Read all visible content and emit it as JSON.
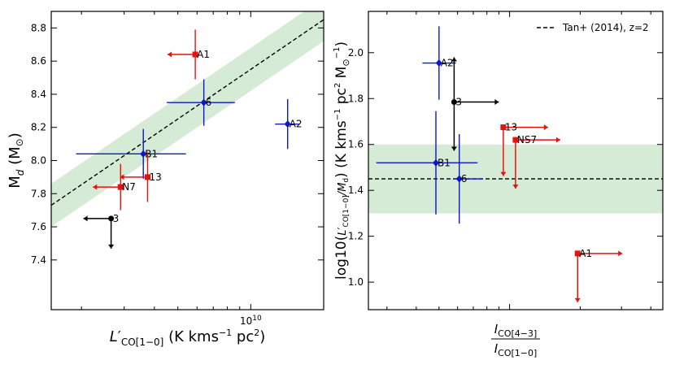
{
  "chart_data": [
    {
      "type": "scatter",
      "xscale": "log",
      "xlim": [
        1500000000.0,
        20000000000.0
      ],
      "ylim": [
        7.1,
        8.9
      ],
      "xticks": [
        {
          "value": 10000000000.0,
          "label": "10^10"
        }
      ],
      "yticks": [
        7.4,
        7.6,
        7.8,
        8.0,
        8.2,
        8.4,
        8.6,
        8.8
      ],
      "xlabel_text": "L′CO[1−0] (K kms⁻¹ pc²)",
      "ylabel_text": "Md (M⊙)",
      "relation": {
        "name": "Tan+ (2014), z=2",
        "style": "dashed",
        "x": [
          1500000000.0,
          20000000000.0
        ],
        "y": [
          7.73,
          8.85
        ],
        "band_halfwidth": 0.13,
        "band_color": "#cfe8cf"
      },
      "points": [
        {
          "label": "A1",
          "color": "#e8120c",
          "marker": "square",
          "x": 5900000000.0,
          "y": 8.64,
          "yerr": 0.15,
          "xlimit": "upper"
        },
        {
          "label": "6",
          "color": "#0b17c8",
          "marker": "diamond",
          "x": 6400000000.0,
          "y": 8.35,
          "xerr": [
            1900000000.0,
            2200000000.0
          ],
          "yerr": 0.14
        },
        {
          "label": "A2",
          "color": "#0b17c8",
          "marker": "diamond",
          "x": 14200000000.0,
          "y": 8.22,
          "xerr": [
            1600000000.0,
            1600000000.0
          ],
          "yerr": 0.15
        },
        {
          "label": "B1",
          "color": "#0b17c8",
          "marker": "diamond",
          "x": 3600000000.0,
          "y": 8.04,
          "xerr": [
            1700000000.0,
            1800000000.0
          ],
          "yerr": 0.15
        },
        {
          "label": "13",
          "color": "#e8120c",
          "marker": "square",
          "x": 3750000000.0,
          "y": 7.9,
          "yerr": 0.15,
          "xlimit": "upper"
        },
        {
          "label": "N7",
          "color": "#e8120c",
          "marker": "square",
          "x": 2900000000.0,
          "y": 7.84,
          "yerr": 0.14,
          "xlimit": "upper"
        },
        {
          "label": "3",
          "color": "#000000",
          "marker": "circle",
          "x": 2650000000.0,
          "y": 7.65,
          "xlimit": "upper",
          "ylimit": "upper"
        }
      ]
    },
    {
      "type": "scatter",
      "xscale": "log",
      "xlim": [
        2.5,
        45
      ],
      "ylim": [
        0.88,
        2.18
      ],
      "yticks": [
        1.0,
        1.2,
        1.4,
        1.6,
        1.8,
        2.0
      ],
      "xlabel_text": "ICO[4−3] / ICO[1−0]",
      "ylabel_text": "log10(L′CO[1−0]/Md) (K kms⁻¹ pc² M⊙⁻¹)",
      "legend": {
        "text": "Tan+ (2014), z=2",
        "position": "top-right"
      },
      "relation": {
        "name": "Tan+ (2014), z=2",
        "style": "dashed",
        "y": 1.45,
        "band": [
          1.3,
          1.6
        ],
        "band_color": "#cfe8cf"
      },
      "points": [
        {
          "label": "A2",
          "color": "#0b17c8",
          "marker": "diamond",
          "x": 5.0,
          "y": 1.955,
          "xerr": [
            0.75,
            0.9
          ],
          "yerr": 0.16
        },
        {
          "label": "3",
          "color": "#000000",
          "marker": "circle",
          "x": 5.8,
          "y": 1.785,
          "xlimit": "lower",
          "ylimit": "both"
        },
        {
          "label": "13",
          "color": "#e8120c",
          "marker": "square",
          "x": 9.4,
          "y": 1.675,
          "xlimit": "lower",
          "ylimit": "lower"
        },
        {
          "label": "NS7",
          "color": "#e8120c",
          "marker": "square",
          "x": 10.6,
          "y": 1.62,
          "xlimit": "lower",
          "ylimit": "lower"
        },
        {
          "label": "B1",
          "color": "#0b17c8",
          "marker": "diamond",
          "x": 4.85,
          "y": 1.52,
          "xerr": [
            2.15,
            2.45
          ],
          "yerr": 0.225
        },
        {
          "label": "6",
          "color": "#0b17c8",
          "marker": "diamond",
          "x": 6.1,
          "y": 1.45,
          "xerr": [
            0.3,
            1.6
          ],
          "yerr": 0.195
        },
        {
          "label": "A1",
          "color": "#e8120c",
          "marker": "square",
          "x": 19.5,
          "y": 1.125,
          "xlimit": "lower",
          "ylimit": "lower"
        }
      ]
    }
  ]
}
